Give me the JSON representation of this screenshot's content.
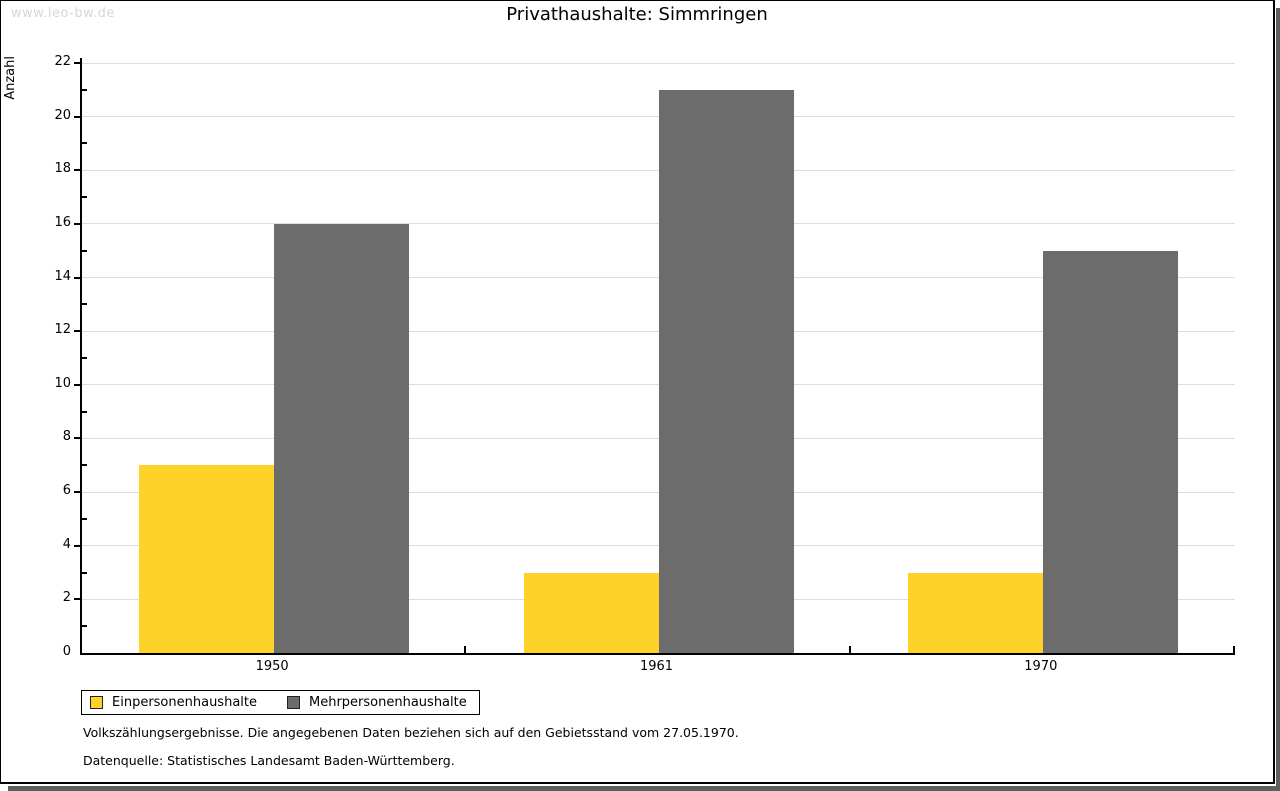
{
  "watermark": "www.leo-bw.de",
  "chart_data": {
    "type": "bar",
    "title": "Privathaushalte: Simmringen",
    "categories": [
      "1950",
      "1961",
      "1970"
    ],
    "series": [
      {
        "name": "Einpersonenhaushalte",
        "color": "#fdd32a",
        "values": [
          7,
          3,
          3
        ]
      },
      {
        "name": "Mehrpersonenhaushalte",
        "color": "#6c6c6c",
        "values": [
          16,
          21,
          15
        ]
      }
    ],
    "xlabel": "",
    "ylabel": "Anzahl",
    "ylim": [
      0,
      22
    ],
    "ytick_step": 2,
    "ytick_minor_step": 1,
    "grid": true,
    "legend_position": "bottom-left",
    "gridline_color": "#dddddd",
    "axis_color": "#000000"
  },
  "footnotes": [
    "Volkszählungsergebnisse. Die angegebenen Daten beziehen sich auf den Gebietsstand vom 27.05.1970.",
    "Datenquelle: Statistisches Landesamt Baden-Württemberg."
  ]
}
